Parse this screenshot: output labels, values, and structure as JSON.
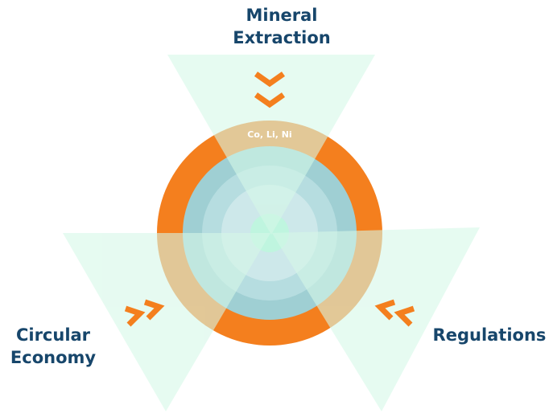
{
  "nodes": [
    {
      "label_lines": [
        "Mineral",
        "Extraction"
      ]
    },
    {
      "label_lines": [
        "Circular",
        "Economy"
      ]
    },
    {
      "label_lines": [
        "Regulations"
      ]
    }
  ],
  "ring_label": "Co, Li, Ni"
}
